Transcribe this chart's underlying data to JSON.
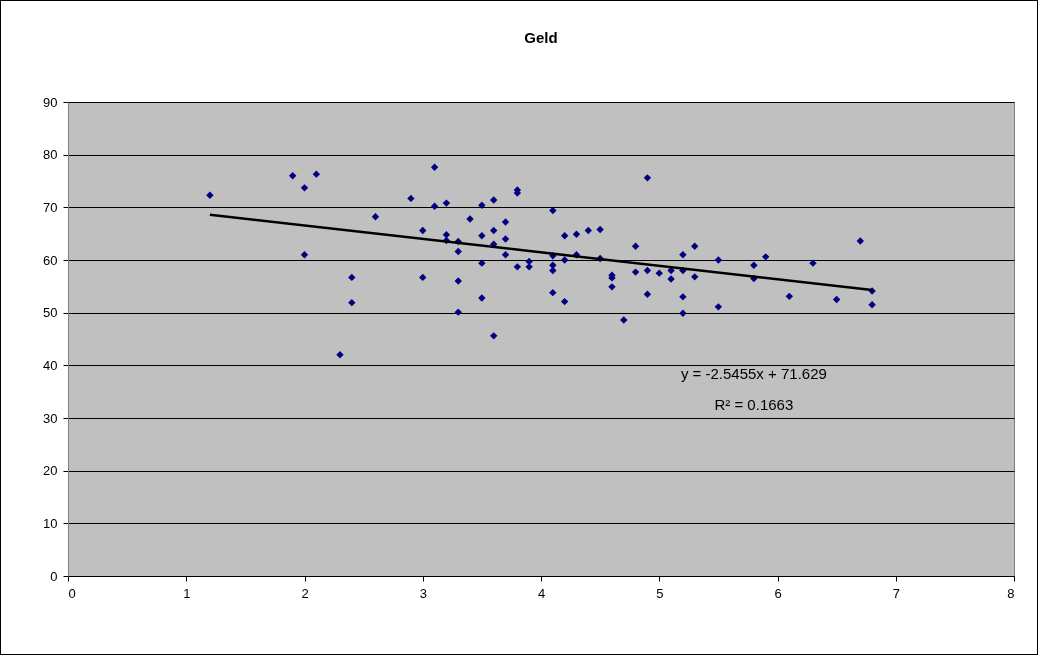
{
  "chart_data": {
    "type": "scatter",
    "title": "Geld",
    "grid": "y",
    "xlim": [
      0,
      8
    ],
    "xticks": [
      0,
      1,
      2,
      3,
      4,
      5,
      6,
      7,
      8
    ],
    "ylim": [
      0,
      90
    ],
    "yticks": [
      0,
      10,
      20,
      30,
      40,
      50,
      60,
      70,
      80,
      90
    ],
    "annotations": [
      "y = -2.5455x + 71.629",
      "R² = 0.1663"
    ],
    "series": [
      {
        "color": "#000080",
        "marker": "diamond",
        "x": [
          1.2,
          1.9,
          2.0,
          2.1,
          2.0,
          2.3,
          2.4,
          2.4,
          2.6,
          2.9,
          3.0,
          3.0,
          3.1,
          3.1,
          3.2,
          3.2,
          3.2,
          3.3,
          3.3,
          3.3,
          3.3,
          3.4,
          3.5,
          3.5,
          3.5,
          3.5,
          3.6,
          3.6,
          3.6,
          3.6,
          3.7,
          3.7,
          3.7,
          3.8,
          3.8,
          3.8,
          3.9,
          3.9,
          4.1,
          4.1,
          4.1,
          4.1,
          4.1,
          4.2,
          4.2,
          4.2,
          4.3,
          4.3,
          4.4,
          4.5,
          4.5,
          4.6,
          4.6,
          4.6,
          4.7,
          4.8,
          4.8,
          4.9,
          4.9,
          4.9,
          5.0,
          5.1,
          5.1,
          5.2,
          5.2,
          5.2,
          5.2,
          5.3,
          5.3,
          5.5,
          5.5,
          5.8,
          5.8,
          5.9,
          6.1,
          6.3,
          6.5,
          6.7,
          6.8,
          6.8
        ],
        "values": [
          72.3,
          76,
          73.7,
          76.3,
          61,
          42,
          56.7,
          51.9,
          68.2,
          71.7,
          65.6,
          56.7,
          77.6,
          70.2,
          70.8,
          64.8,
          63.7,
          63.5,
          61.6,
          56,
          50.1,
          67.8,
          70.4,
          64.6,
          59.4,
          52.8,
          71.4,
          65.6,
          63,
          45.6,
          67.2,
          64,
          61,
          73.3,
          72.7,
          58.7,
          59.7,
          58.7,
          69.4,
          60.8,
          59,
          58,
          53.8,
          64.6,
          60,
          52.1,
          64.9,
          61,
          65.6,
          65.8,
          60.3,
          57.1,
          56.6,
          54.9,
          48.6,
          62.6,
          57.7,
          75.6,
          58,
          53.5,
          57.5,
          58,
          56.4,
          61,
          58,
          53,
          49.9,
          62.6,
          56.8,
          60,
          51.1,
          59,
          56.5,
          60.6,
          53.1,
          59.4,
          52.5,
          63.6,
          54.1,
          51.5
        ]
      },
      {
        "type": "line",
        "color": "#000000",
        "x": [
          1.2,
          6.8
        ],
        "values": [
          68.6,
          54.3
        ],
        "marker": "none",
        "line_style": "solid"
      }
    ]
  }
}
